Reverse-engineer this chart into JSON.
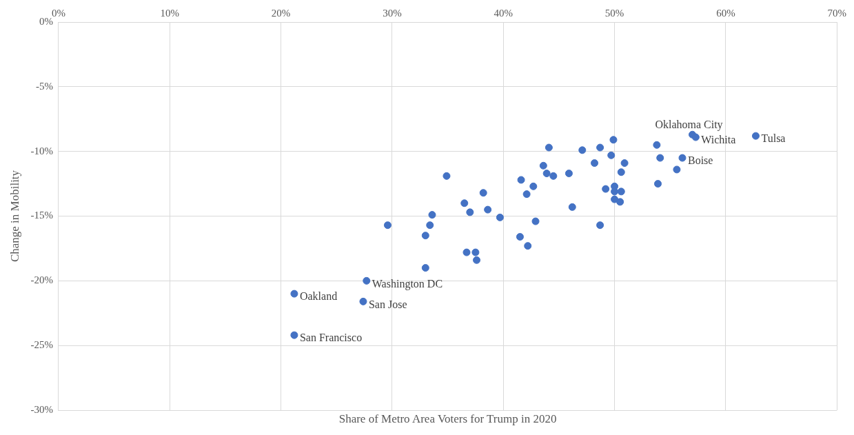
{
  "chart_data": {
    "type": "scatter",
    "xlabel": "Share of Metro Area Voters for Trump in 2020",
    "ylabel": "Change in Mobility",
    "xlim": [
      0,
      70
    ],
    "ylim": [
      -30,
      0
    ],
    "xticks": [
      {
        "value": 0,
        "label": "0%"
      },
      {
        "value": 10,
        "label": "10%"
      },
      {
        "value": 20,
        "label": "20%"
      },
      {
        "value": 30,
        "label": "30%"
      },
      {
        "value": 40,
        "label": "40%"
      },
      {
        "value": 50,
        "label": "50%"
      },
      {
        "value": 60,
        "label": "60%"
      },
      {
        "value": 70,
        "label": "70%"
      }
    ],
    "yticks": [
      {
        "value": 0,
        "label": "0%"
      },
      {
        "value": -5,
        "label": "-5%"
      },
      {
        "value": -10,
        "label": "-10%"
      },
      {
        "value": -15,
        "label": "-15%"
      },
      {
        "value": -20,
        "label": "-20%"
      },
      {
        "value": -25,
        "label": "-25%"
      },
      {
        "value": -30,
        "label": "-30%"
      }
    ],
    "grid": true,
    "legend": false,
    "marker": "circle",
    "series": [
      {
        "color": "#4472c4",
        "x": [
          21.2,
          21.2,
          27.7,
          27.4,
          29.6,
          33.4,
          33.6,
          33.0,
          33.0,
          34.9,
          36.5,
          37.0,
          36.7,
          37.5,
          37.6,
          38.2,
          38.6,
          39.7,
          41.5,
          42.2,
          41.6,
          42.1,
          42.7,
          42.9,
          43.6,
          43.9,
          44.1,
          44.5,
          45.9,
          46.2,
          47.1,
          48.2,
          48.7,
          48.7,
          49.2,
          49.7,
          49.9,
          50.0,
          50.0,
          50.0,
          50.6,
          50.5,
          50.6,
          50.9,
          53.8,
          54.1,
          53.9,
          55.6,
          56.1,
          57.0,
          57.3,
          62.7
        ],
        "values": [
          -21.0,
          -24.2,
          -20.0,
          -21.6,
          -15.7,
          -15.7,
          -14.9,
          -16.5,
          -19.0,
          -11.9,
          -14.0,
          -14.7,
          -17.8,
          -17.8,
          -18.4,
          -13.2,
          -14.5,
          -15.1,
          -16.6,
          -17.3,
          -12.2,
          -13.3,
          -12.7,
          -15.4,
          -11.1,
          -11.7,
          -9.7,
          -11.9,
          -11.7,
          -14.3,
          -9.9,
          -10.9,
          -15.7,
          -9.7,
          -12.9,
          -10.3,
          -9.1,
          -12.7,
          -13.1,
          -13.7,
          -13.1,
          -13.9,
          -11.6,
          -10.9,
          -9.5,
          -10.5,
          -12.5,
          -11.4,
          -10.5,
          -8.7,
          -8.9,
          -8.8
        ]
      }
    ],
    "annotations": [
      {
        "text": "Oakland",
        "x": 21.2,
        "y": -21.0
      },
      {
        "text": "San Francisco",
        "x": 21.2,
        "y": -24.2
      },
      {
        "text": "Washington DC",
        "x": 27.7,
        "y": -20.0
      },
      {
        "text": "San Jose",
        "x": 27.4,
        "y": -21.6
      },
      {
        "text": "Boise",
        "x": 56.1,
        "y": -10.5
      },
      {
        "text": "Wichita",
        "x": 57.3,
        "y": -8.9
      },
      {
        "text": "Oklahoma City",
        "x": 57.0,
        "y": -8.7
      },
      {
        "text": "Tulsa",
        "x": 62.7,
        "y": -8.8
      }
    ]
  }
}
